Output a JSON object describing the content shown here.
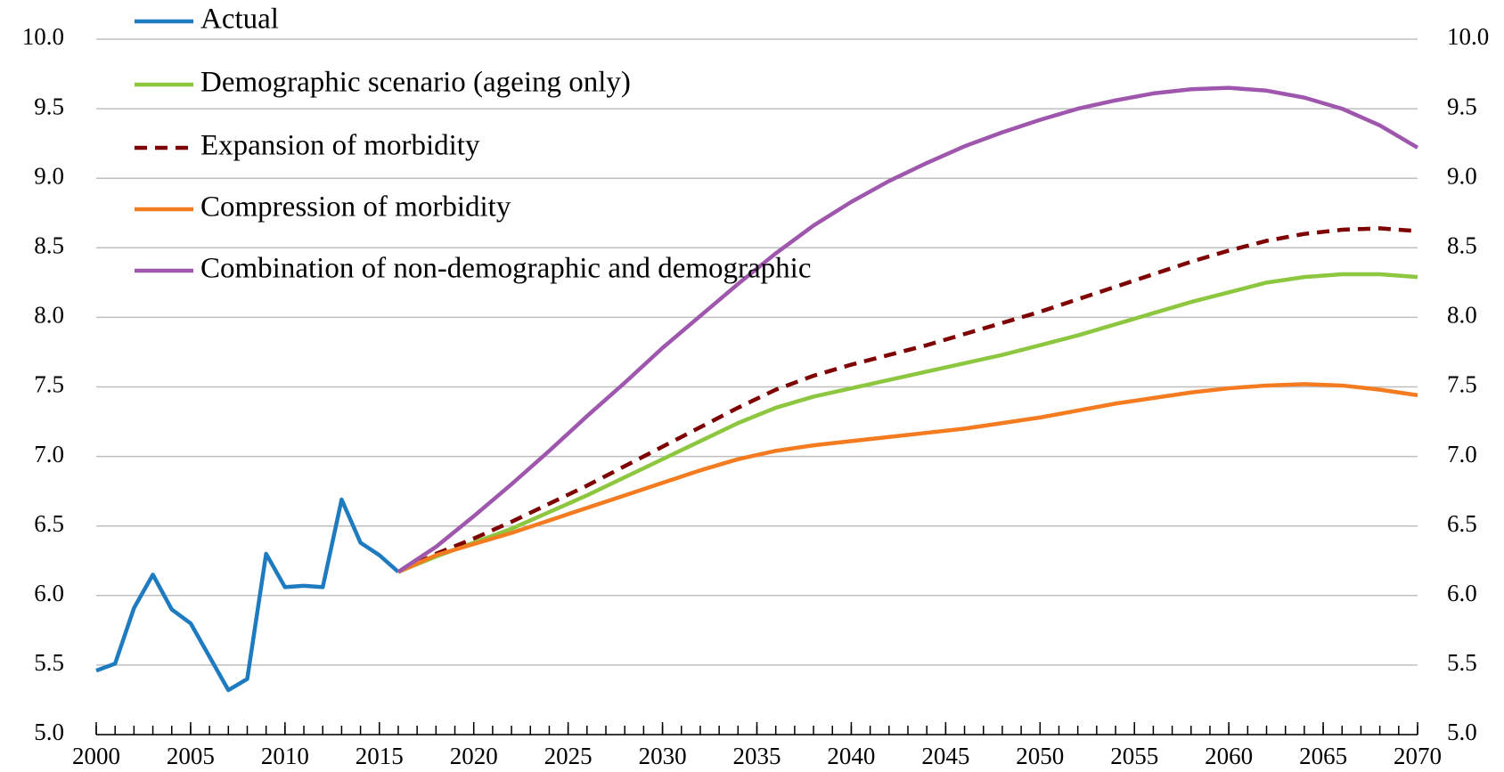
{
  "chart_data": {
    "type": "line",
    "x": [
      2000,
      2001,
      2002,
      2003,
      2004,
      2005,
      2006,
      2007,
      2008,
      2009,
      2010,
      2011,
      2012,
      2013,
      2014,
      2015,
      2016,
      2018,
      2020,
      2022,
      2024,
      2026,
      2028,
      2030,
      2032,
      2034,
      2036,
      2038,
      2040,
      2042,
      2044,
      2046,
      2048,
      2050,
      2052,
      2054,
      2056,
      2058,
      2060,
      2062,
      2064,
      2066,
      2068,
      2070
    ],
    "xlim": [
      2000,
      2070
    ],
    "xticks": [
      2000,
      2005,
      2010,
      2015,
      2020,
      2025,
      2030,
      2035,
      2040,
      2045,
      2050,
      2055,
      2060,
      2065,
      2070
    ],
    "ylim": [
      5,
      10
    ],
    "yticks": [
      {
        "value": 5,
        "label": "5.0"
      },
      {
        "value": 5.5,
        "label": "5.5"
      },
      {
        "value": 6,
        "label": "6.0"
      },
      {
        "value": 6.5,
        "label": "6.5"
      },
      {
        "value": 7,
        "label": "7.0"
      },
      {
        "value": 7.5,
        "label": "7.5"
      },
      {
        "value": 8,
        "label": "8.0"
      },
      {
        "value": 8.5,
        "label": "8.5"
      },
      {
        "value": 9,
        "label": "9.0"
      },
      {
        "value": 9.5,
        "label": "9.5"
      },
      {
        "value": 10,
        "label": "10.0"
      }
    ],
    "y2lim": [
      5,
      10
    ],
    "y2ticks": [
      {
        "value": 5,
        "label": "5.0"
      },
      {
        "value": 5.5,
        "label": "5.5"
      },
      {
        "value": 6,
        "label": "6.0"
      },
      {
        "value": 6.5,
        "label": "6.5"
      },
      {
        "value": 7,
        "label": "7.0"
      },
      {
        "value": 7.5,
        "label": "7.5"
      },
      {
        "value": 8,
        "label": "8.0"
      },
      {
        "value": 8.5,
        "label": "8.5"
      },
      {
        "value": 9,
        "label": "9.0"
      },
      {
        "value": 9.5,
        "label": "9.5"
      },
      {
        "value": 10,
        "label": "10.0"
      }
    ],
    "grid": true,
    "legend": "top-left",
    "series": [
      {
        "name": "Actual",
        "color": "#1f7bc0",
        "dashed": false,
        "values": [
          5.46,
          5.51,
          5.91,
          6.15,
          5.9,
          5.8,
          5.56,
          5.32,
          5.4,
          6.3,
          6.06,
          6.07,
          6.06,
          6.69,
          6.38,
          6.29,
          6.17,
          null,
          null,
          null,
          null,
          null,
          null,
          null,
          null,
          null,
          null,
          null,
          null,
          null,
          null,
          null,
          null,
          null,
          null,
          null,
          null,
          null,
          null,
          null,
          null,
          null,
          null,
          null
        ]
      },
      {
        "name": "Demographic scenario (ageing only)",
        "color": "#8dc63f",
        "dashed": false,
        "values": [
          null,
          null,
          null,
          null,
          null,
          null,
          null,
          null,
          null,
          null,
          null,
          null,
          null,
          null,
          null,
          null,
          6.17,
          6.28,
          6.38,
          6.48,
          6.6,
          6.72,
          6.85,
          6.98,
          7.11,
          7.24,
          7.35,
          7.43,
          7.49,
          7.55,
          7.61,
          7.67,
          7.73,
          7.8,
          7.87,
          7.95,
          8.03,
          8.11,
          8.18,
          8.25,
          8.29,
          8.31,
          8.31,
          8.29
        ]
      },
      {
        "name": "Expansion of morbidity",
        "color": "#7f0000",
        "dashed": true,
        "values": [
          null,
          null,
          null,
          null,
          null,
          null,
          null,
          null,
          null,
          null,
          null,
          null,
          null,
          null,
          null,
          null,
          6.17,
          6.3,
          6.41,
          6.53,
          6.66,
          6.79,
          6.93,
          7.07,
          7.21,
          7.35,
          7.48,
          7.58,
          7.66,
          7.73,
          7.8,
          7.88,
          7.96,
          8.04,
          8.13,
          8.22,
          8.31,
          8.4,
          8.48,
          8.55,
          8.6,
          8.63,
          8.64,
          8.62
        ]
      },
      {
        "name": "Compression of morbidity",
        "color": "#f47b20",
        "dashed": false,
        "values": [
          null,
          null,
          null,
          null,
          null,
          null,
          null,
          null,
          null,
          null,
          null,
          null,
          null,
          null,
          null,
          null,
          6.17,
          6.29,
          6.37,
          6.45,
          6.54,
          6.63,
          6.72,
          6.81,
          6.9,
          6.98,
          7.04,
          7.08,
          7.11,
          7.14,
          7.17,
          7.2,
          7.24,
          7.28,
          7.33,
          7.38,
          7.42,
          7.46,
          7.49,
          7.51,
          7.52,
          7.51,
          7.48,
          7.44
        ]
      },
      {
        "name": "Combination of non-demographic and demographic",
        "color": "#9e57ad",
        "dashed": false,
        "values": [
          null,
          null,
          null,
          null,
          null,
          null,
          null,
          null,
          null,
          null,
          null,
          null,
          null,
          null,
          null,
          null,
          6.17,
          6.35,
          6.57,
          6.8,
          7.04,
          7.29,
          7.53,
          7.78,
          8.01,
          8.24,
          8.46,
          8.66,
          8.83,
          8.98,
          9.11,
          9.23,
          9.33,
          9.42,
          9.5,
          9.56,
          9.61,
          9.64,
          9.65,
          9.63,
          9.58,
          9.5,
          9.38,
          9.22
        ]
      }
    ]
  }
}
